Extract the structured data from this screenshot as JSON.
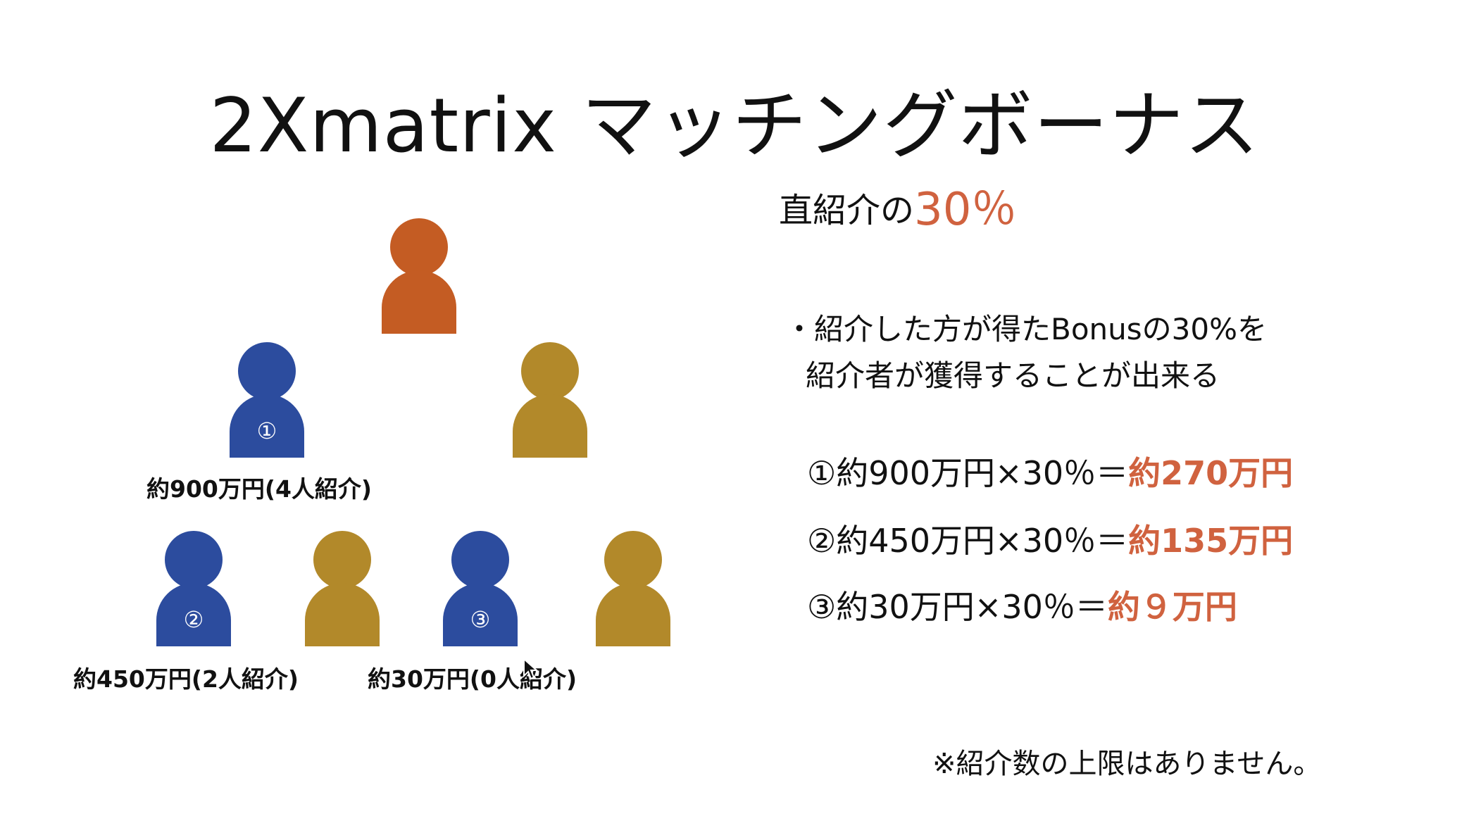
{
  "title": "2Xmatrix マッチングボーナス",
  "colors": {
    "top": "#c45c23",
    "blue": "#2c4c9e",
    "gold": "#b2892a",
    "accent": "#d0623f"
  },
  "diagram": {
    "nodes": [
      {
        "role": "top",
        "color": "top",
        "number": ""
      },
      {
        "role": "level1-left",
        "color": "blue",
        "number": "①"
      },
      {
        "role": "level1-right",
        "color": "gold",
        "number": ""
      },
      {
        "role": "level2-1",
        "color": "blue",
        "number": "②"
      },
      {
        "role": "level2-2",
        "color": "gold",
        "number": ""
      },
      {
        "role": "level2-3",
        "color": "blue",
        "number": "③"
      },
      {
        "role": "level2-4",
        "color": "gold",
        "number": ""
      }
    ],
    "labels": {
      "node1": "約900万円(4人紹介)",
      "node2": "約450万円(2人紹介)",
      "node3": "約30万円(0人紹介)"
    }
  },
  "rate": {
    "prefix": "直紹介の",
    "value": "30％"
  },
  "description": {
    "line1": "・紹介した方が得たBonusの30%を",
    "line2": "紹介者が獲得することが出来る"
  },
  "calculations": [
    {
      "formula": "①約900万円×30％＝",
      "result": "約270万円"
    },
    {
      "formula": "②約450万円×30％＝",
      "result": "約135万円"
    },
    {
      "formula": "③約30万円×30％＝",
      "result": "約９万円"
    }
  ],
  "note": "※紹介数の上限はありません。"
}
